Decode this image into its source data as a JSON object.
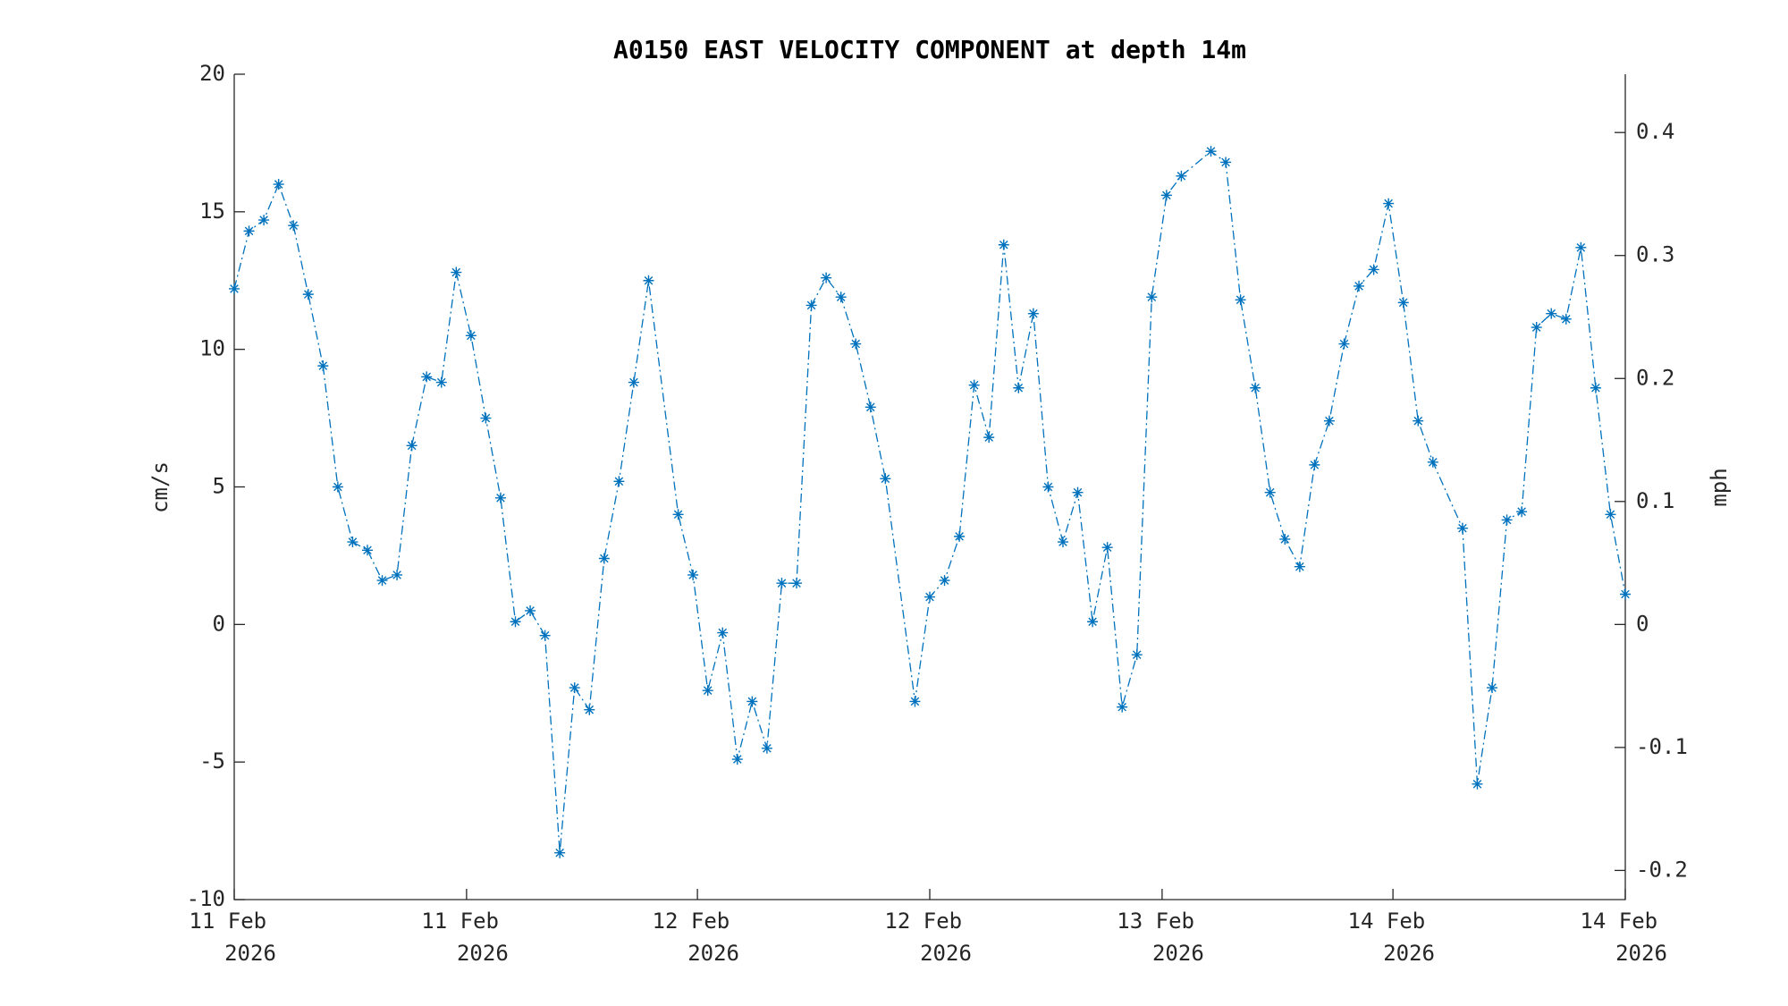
{
  "chart_data": {
    "type": "line",
    "title": "A0150 EAST VELOCITY COMPONENT at depth 14m",
    "ylabel": "cm/s",
    "y2label": "mph",
    "x": [
      0,
      1,
      2,
      3,
      4,
      5,
      6,
      7,
      8,
      9,
      10,
      11,
      12,
      13,
      14,
      15,
      16,
      17,
      18,
      19,
      20,
      21,
      22,
      23,
      24,
      25,
      26,
      27,
      28,
      30,
      31,
      32,
      33,
      34,
      35,
      36,
      37,
      38,
      39,
      40,
      41,
      42,
      43,
      44,
      46,
      47,
      48,
      49,
      50,
      51,
      52,
      53,
      54,
      55,
      56,
      57,
      58,
      59,
      60,
      61,
      62,
      63,
      64,
      66,
      67,
      68,
      69,
      70,
      71,
      72,
      73,
      74,
      75,
      76,
      77,
      78,
      79,
      80,
      81,
      83,
      84,
      85,
      86,
      87,
      88,
      89,
      90,
      91,
      92,
      93,
      94
    ],
    "series": [
      {
        "name": "East velocity",
        "color": "#0072bd",
        "values": [
          12.2,
          14.3,
          14.7,
          16.0,
          14.5,
          12.0,
          9.4,
          5.0,
          3.0,
          2.7,
          1.6,
          1.8,
          6.5,
          9.0,
          8.8,
          12.8,
          10.5,
          7.5,
          4.6,
          0.1,
          0.5,
          -0.4,
          -8.3,
          -2.3,
          -3.1,
          2.4,
          5.2,
          8.8,
          12.5,
          4.0,
          1.8,
          -2.4,
          -0.3,
          -4.9,
          -2.8,
          -4.5,
          1.5,
          1.5,
          11.6,
          12.6,
          11.9,
          10.2,
          7.9,
          5.3,
          -2.8,
          1.0,
          1.6,
          3.2,
          8.7,
          6.8,
          13.8,
          8.6,
          11.3,
          5.0,
          3.0,
          4.8,
          0.1,
          2.8,
          -3.0,
          -1.1,
          11.9,
          15.6,
          16.3,
          17.2,
          16.8,
          11.8,
          8.6,
          4.8,
          3.1,
          2.1,
          5.8,
          7.4,
          10.2,
          12.3,
          12.9,
          15.3,
          11.7,
          7.4,
          5.9,
          3.5,
          -5.8,
          -2.3,
          3.8,
          4.1,
          10.8,
          11.3,
          11.1,
          13.7,
          8.6,
          4.0,
          1.1
        ]
      }
    ],
    "xlim": [
      0,
      94
    ],
    "xticks": [
      {
        "value": 0,
        "label": "11 Feb 2026"
      },
      {
        "value": 15.7,
        "label": "11 Feb 2026"
      },
      {
        "value": 31.3,
        "label": "12 Feb 2026"
      },
      {
        "value": 47,
        "label": "12 Feb 2026"
      },
      {
        "value": 62.7,
        "label": "13 Feb 2026"
      },
      {
        "value": 78.3,
        "label": "14 Feb 2026"
      },
      {
        "value": 94,
        "label": "14 Feb 2026"
      }
    ],
    "ylim": [
      -10,
      20
    ],
    "yticks": [
      -10,
      -5,
      0,
      5,
      10,
      15,
      20
    ],
    "y2lim": [
      -0.2237,
      0.4474
    ],
    "y2ticks": [
      -0.2,
      -0.1,
      0,
      0.1,
      0.2,
      0.3,
      0.4
    ],
    "grid": false,
    "line_style": "dashdot",
    "marker": "asterisk"
  }
}
